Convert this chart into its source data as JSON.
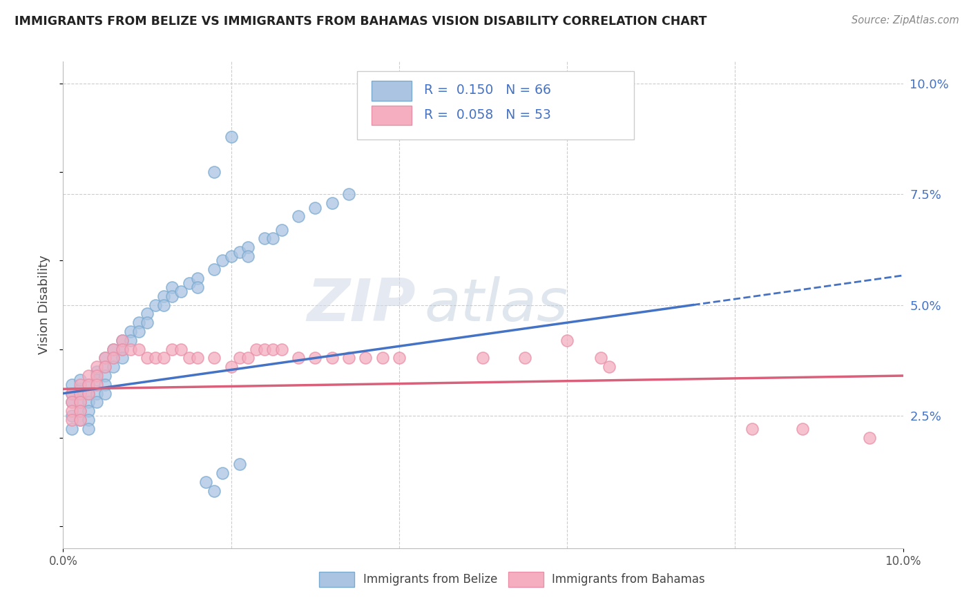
{
  "title": "IMMIGRANTS FROM BELIZE VS IMMIGRANTS FROM BAHAMAS VISION DISABILITY CORRELATION CHART",
  "source": "Source: ZipAtlas.com",
  "ylabel": "Vision Disability",
  "xlim": [
    0.0,
    0.1
  ],
  "ylim": [
    -0.005,
    0.105
  ],
  "ytick_labels_right": [
    "2.5%",
    "5.0%",
    "7.5%",
    "10.0%"
  ],
  "ytick_vals_right": [
    0.025,
    0.05,
    0.075,
    0.1
  ],
  "belize_color": "#aac4e2",
  "bahamas_color": "#f4aec0",
  "belize_edge": "#7aaad0",
  "bahamas_edge": "#e890a8",
  "belize_line_color": "#4472c4",
  "bahamas_line_color": "#d9607a",
  "legend_R1": "0.150",
  "legend_N1": "66",
  "legend_R2": "0.058",
  "legend_N2": "53",
  "watermark_zip": "ZIP",
  "watermark_atlas": "atlas",
  "belize_scatter_x": [
    0.001,
    0.001,
    0.001,
    0.001,
    0.001,
    0.002,
    0.002,
    0.002,
    0.002,
    0.002,
    0.002,
    0.003,
    0.003,
    0.003,
    0.003,
    0.003,
    0.003,
    0.004,
    0.004,
    0.004,
    0.004,
    0.005,
    0.005,
    0.005,
    0.005,
    0.005,
    0.006,
    0.006,
    0.006,
    0.007,
    0.007,
    0.007,
    0.008,
    0.008,
    0.009,
    0.009,
    0.01,
    0.01,
    0.011,
    0.012,
    0.012,
    0.013,
    0.013,
    0.014,
    0.015,
    0.016,
    0.016,
    0.018,
    0.019,
    0.02,
    0.021,
    0.022,
    0.022,
    0.024,
    0.025,
    0.026,
    0.028,
    0.03,
    0.032,
    0.034,
    0.018,
    0.02,
    0.017,
    0.019,
    0.018,
    0.021
  ],
  "belize_scatter_y": [
    0.03,
    0.032,
    0.028,
    0.025,
    0.022,
    0.031,
    0.033,
    0.03,
    0.028,
    0.026,
    0.024,
    0.032,
    0.03,
    0.028,
    0.026,
    0.024,
    0.022,
    0.035,
    0.033,
    0.03,
    0.028,
    0.038,
    0.036,
    0.034,
    0.032,
    0.03,
    0.04,
    0.038,
    0.036,
    0.042,
    0.04,
    0.038,
    0.044,
    0.042,
    0.046,
    0.044,
    0.048,
    0.046,
    0.05,
    0.052,
    0.05,
    0.054,
    0.052,
    0.053,
    0.055,
    0.056,
    0.054,
    0.058,
    0.06,
    0.061,
    0.062,
    0.063,
    0.061,
    0.065,
    0.065,
    0.067,
    0.07,
    0.072,
    0.073,
    0.075,
    0.08,
    0.088,
    0.01,
    0.012,
    0.008,
    0.014
  ],
  "bahamas_scatter_x": [
    0.001,
    0.001,
    0.001,
    0.001,
    0.002,
    0.002,
    0.002,
    0.002,
    0.002,
    0.003,
    0.003,
    0.003,
    0.004,
    0.004,
    0.004,
    0.005,
    0.005,
    0.006,
    0.006,
    0.007,
    0.007,
    0.008,
    0.009,
    0.01,
    0.011,
    0.012,
    0.013,
    0.014,
    0.015,
    0.016,
    0.018,
    0.02,
    0.021,
    0.022,
    0.023,
    0.024,
    0.025,
    0.026,
    0.028,
    0.03,
    0.032,
    0.034,
    0.036,
    0.038,
    0.04,
    0.05,
    0.055,
    0.06,
    0.064,
    0.065,
    0.082,
    0.088,
    0.096
  ],
  "bahamas_scatter_y": [
    0.03,
    0.028,
    0.026,
    0.024,
    0.032,
    0.03,
    0.028,
    0.026,
    0.024,
    0.034,
    0.032,
    0.03,
    0.036,
    0.034,
    0.032,
    0.038,
    0.036,
    0.04,
    0.038,
    0.042,
    0.04,
    0.04,
    0.04,
    0.038,
    0.038,
    0.038,
    0.04,
    0.04,
    0.038,
    0.038,
    0.038,
    0.036,
    0.038,
    0.038,
    0.04,
    0.04,
    0.04,
    0.04,
    0.038,
    0.038,
    0.038,
    0.038,
    0.038,
    0.038,
    0.038,
    0.038,
    0.038,
    0.042,
    0.038,
    0.036,
    0.022,
    0.022,
    0.02
  ],
  "belize_line_x0": 0.0,
  "belize_line_y0": 0.03,
  "belize_line_x1": 0.075,
  "belize_line_y1": 0.05,
  "bahamas_line_x0": 0.0,
  "bahamas_line_y0": 0.031,
  "bahamas_line_x1": 0.1,
  "bahamas_line_y1": 0.034
}
